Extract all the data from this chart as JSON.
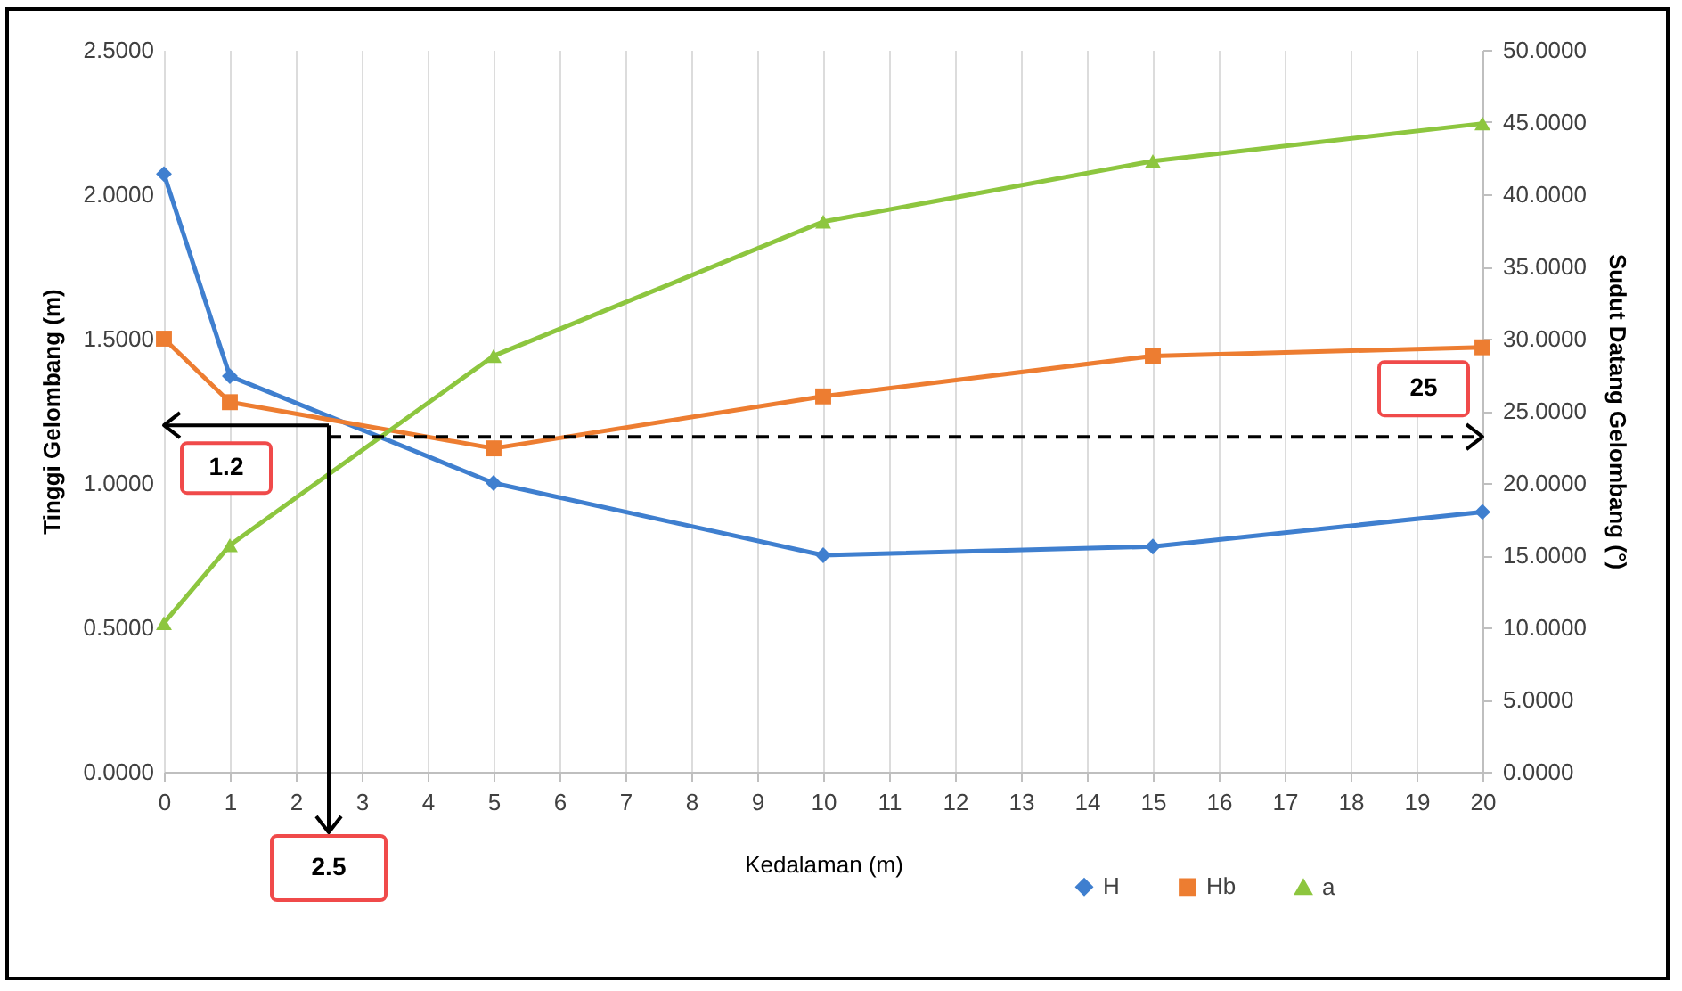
{
  "chart_data": {
    "type": "line",
    "xlabel": "Kedalaman (m)",
    "ylabel": "Tinggi Gelombang (m)",
    "y2label": "Sudut Datang Gelombang (°)",
    "x": [
      0,
      1,
      5,
      10,
      15,
      20
    ],
    "series": [
      {
        "name": "H",
        "color": "#3f7fcf",
        "marker": "diamond",
        "values": [
          2.07,
          1.37,
          1.0,
          0.75,
          0.78,
          0.9
        ]
      },
      {
        "name": "Hb",
        "color": "#ed7d31",
        "marker": "square",
        "values": [
          1.5,
          1.28,
          1.12,
          1.3,
          1.44,
          1.47
        ]
      },
      {
        "name": "a",
        "color": "#8dc63f",
        "marker": "triangle",
        "axis": "y2",
        "values": [
          10.3,
          15.7,
          28.8,
          38.1,
          42.3,
          44.9
        ]
      }
    ],
    "xlim": [
      0,
      20
    ],
    "xticks": [
      0,
      1,
      2,
      3,
      4,
      5,
      6,
      7,
      8,
      9,
      10,
      11,
      12,
      13,
      14,
      15,
      16,
      17,
      18,
      19,
      20
    ],
    "ylim": [
      0,
      2.5
    ],
    "yticks": [
      {
        "value": 0,
        "label": "0.0000"
      },
      {
        "value": 0.5,
        "label": "0.5000"
      },
      {
        "value": 1,
        "label": "1.0000"
      },
      {
        "value": 1.5,
        "label": "1.5000"
      },
      {
        "value": 2,
        "label": "2.0000"
      },
      {
        "value": 2.5,
        "label": "2.5000"
      }
    ],
    "y2lim": [
      0,
      50
    ],
    "y2ticks": [
      {
        "value": 0,
        "label": "0.0000"
      },
      {
        "value": 5,
        "label": "5.0000"
      },
      {
        "value": 10,
        "label": "10.0000"
      },
      {
        "value": 15,
        "label": "15.0000"
      },
      {
        "value": 20,
        "label": "20.0000"
      },
      {
        "value": 25,
        "label": "25.0000"
      },
      {
        "value": 30,
        "label": "30.0000"
      },
      {
        "value": 35,
        "label": "35.0000"
      },
      {
        "value": 40,
        "label": "40.0000"
      },
      {
        "value": 45,
        "label": "45.0000"
      },
      {
        "value": 50,
        "label": "50.0000"
      }
    ],
    "grid": "x",
    "legend": "bottom right",
    "ref_lines": [
      {
        "axis": "y",
        "value": 1.2,
        "label": "1.2",
        "color": "#000000"
      },
      {
        "axis": "x",
        "value": 2.5,
        "label": "2.5",
        "color": "#000000"
      },
      {
        "axis": "y",
        "value": 1.16,
        "color": "#000000",
        "line_style": "dashed"
      }
    ],
    "annotations": [
      "25"
    ]
  }
}
